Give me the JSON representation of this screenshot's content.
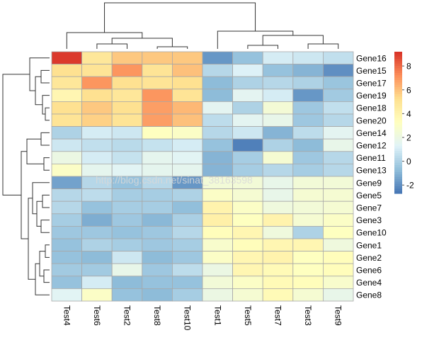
{
  "chart_data": {
    "type": "heatmap",
    "title": "",
    "columns": [
      "Test4",
      "Test6",
      "Test2",
      "Test8",
      "Test10",
      "Test1",
      "Test5",
      "Test7",
      "Test3",
      "Test9"
    ],
    "rows": [
      "Gene16",
      "Gene15",
      "Gene17",
      "Gene19",
      "Gene18",
      "Gene20",
      "Gene14",
      "Gene12",
      "Gene11",
      "Gene13",
      "Gene9",
      "Gene5",
      "Gene7",
      "Gene3",
      "Gene10",
      "Gene1",
      "Gene2",
      "Gene6",
      "Gene4",
      "Gene8"
    ],
    "values": [
      [
        9.0,
        4.8,
        5.8,
        5.8,
        5.8,
        -1.8,
        -0.6,
        1.0,
        0.8,
        0.5
      ],
      [
        5.2,
        5.0,
        7.0,
        5.0,
        6.0,
        0.2,
        1.2,
        -0.6,
        -1.0,
        -2.0
      ],
      [
        4.8,
        7.0,
        5.2,
        5.0,
        5.2,
        -0.8,
        0.0,
        0.2,
        0.0,
        -0.5
      ],
      [
        3.8,
        5.2,
        4.8,
        7.0,
        5.0,
        -0.8,
        1.5,
        1.0,
        -1.8,
        -0.3
      ],
      [
        5.2,
        5.8,
        5.2,
        6.8,
        6.2,
        1.5,
        0.0,
        2.5,
        -0.4,
        0.5
      ],
      [
        5.0,
        5.6,
        5.0,
        6.8,
        6.0,
        0.4,
        1.5,
        1.8,
        -0.4,
        0.2
      ],
      [
        0.0,
        1.0,
        0.8,
        3.2,
        3.0,
        0.2,
        0.8,
        -1.0,
        0.4,
        1.5
      ],
      [
        0.8,
        0.5,
        0.3,
        0.6,
        1.0,
        -0.6,
        -2.4,
        0.0,
        -0.8,
        1.8
      ],
      [
        2.0,
        1.0,
        0.6,
        1.6,
        1.4,
        -1.0,
        -0.2,
        2.6,
        -0.4,
        0.2
      ],
      [
        3.0,
        1.6,
        1.4,
        1.6,
        1.6,
        -1.0,
        -0.2,
        0.2,
        -0.2,
        0.2
      ],
      [
        -1.5,
        0.2,
        -0.6,
        0.2,
        -1.8,
        2.4,
        2.4,
        1.8,
        2.4,
        2.4
      ],
      [
        0.2,
        0.4,
        -0.2,
        -0.2,
        0.0,
        3.0,
        2.6,
        1.8,
        2.6,
        2.6
      ],
      [
        0.2,
        -0.6,
        -0.2,
        -0.2,
        -0.7,
        4.0,
        3.0,
        2.2,
        2.4,
        2.6
      ],
      [
        -0.2,
        -1.2,
        -0.4,
        -0.9,
        -0.1,
        4.2,
        3.2,
        4.0,
        2.6,
        3.0
      ],
      [
        -0.4,
        -0.4,
        -0.6,
        -0.4,
        0.2,
        3.4,
        3.8,
        2.2,
        0.0,
        3.2
      ],
      [
        -0.6,
        0.0,
        -0.2,
        -0.4,
        -0.2,
        2.8,
        3.4,
        3.8,
        3.8,
        2.2
      ],
      [
        -0.6,
        -0.8,
        0.8,
        -0.8,
        -0.4,
        3.0,
        3.8,
        4.0,
        3.2,
        3.4
      ],
      [
        -0.3,
        -0.3,
        1.8,
        -0.4,
        0.4,
        2.0,
        3.8,
        3.6,
        3.2,
        3.4
      ],
      [
        -0.6,
        1.0,
        -0.8,
        -0.6,
        -0.6,
        2.4,
        3.0,
        3.6,
        3.4,
        2.8
      ],
      [
        1.4,
        3.0,
        -0.6,
        -0.8,
        -0.2,
        2.0,
        2.6,
        3.6,
        2.6,
        1.8
      ]
    ],
    "legend": {
      "min": -2.7,
      "max": 9.2,
      "ticks": [
        8,
        6,
        4,
        2,
        0,
        -2
      ],
      "placement": "right",
      "colors": [
        "#4575b4",
        "#91bfdb",
        "#e0f3f8",
        "#ffffbf",
        "#fee090",
        "#fc8d59",
        "#d73027"
      ]
    },
    "column_dendrogram": true,
    "row_dendrogram": true,
    "grid": false,
    "watermark": "http://blog.csdn.net/sinat_38163598"
  }
}
